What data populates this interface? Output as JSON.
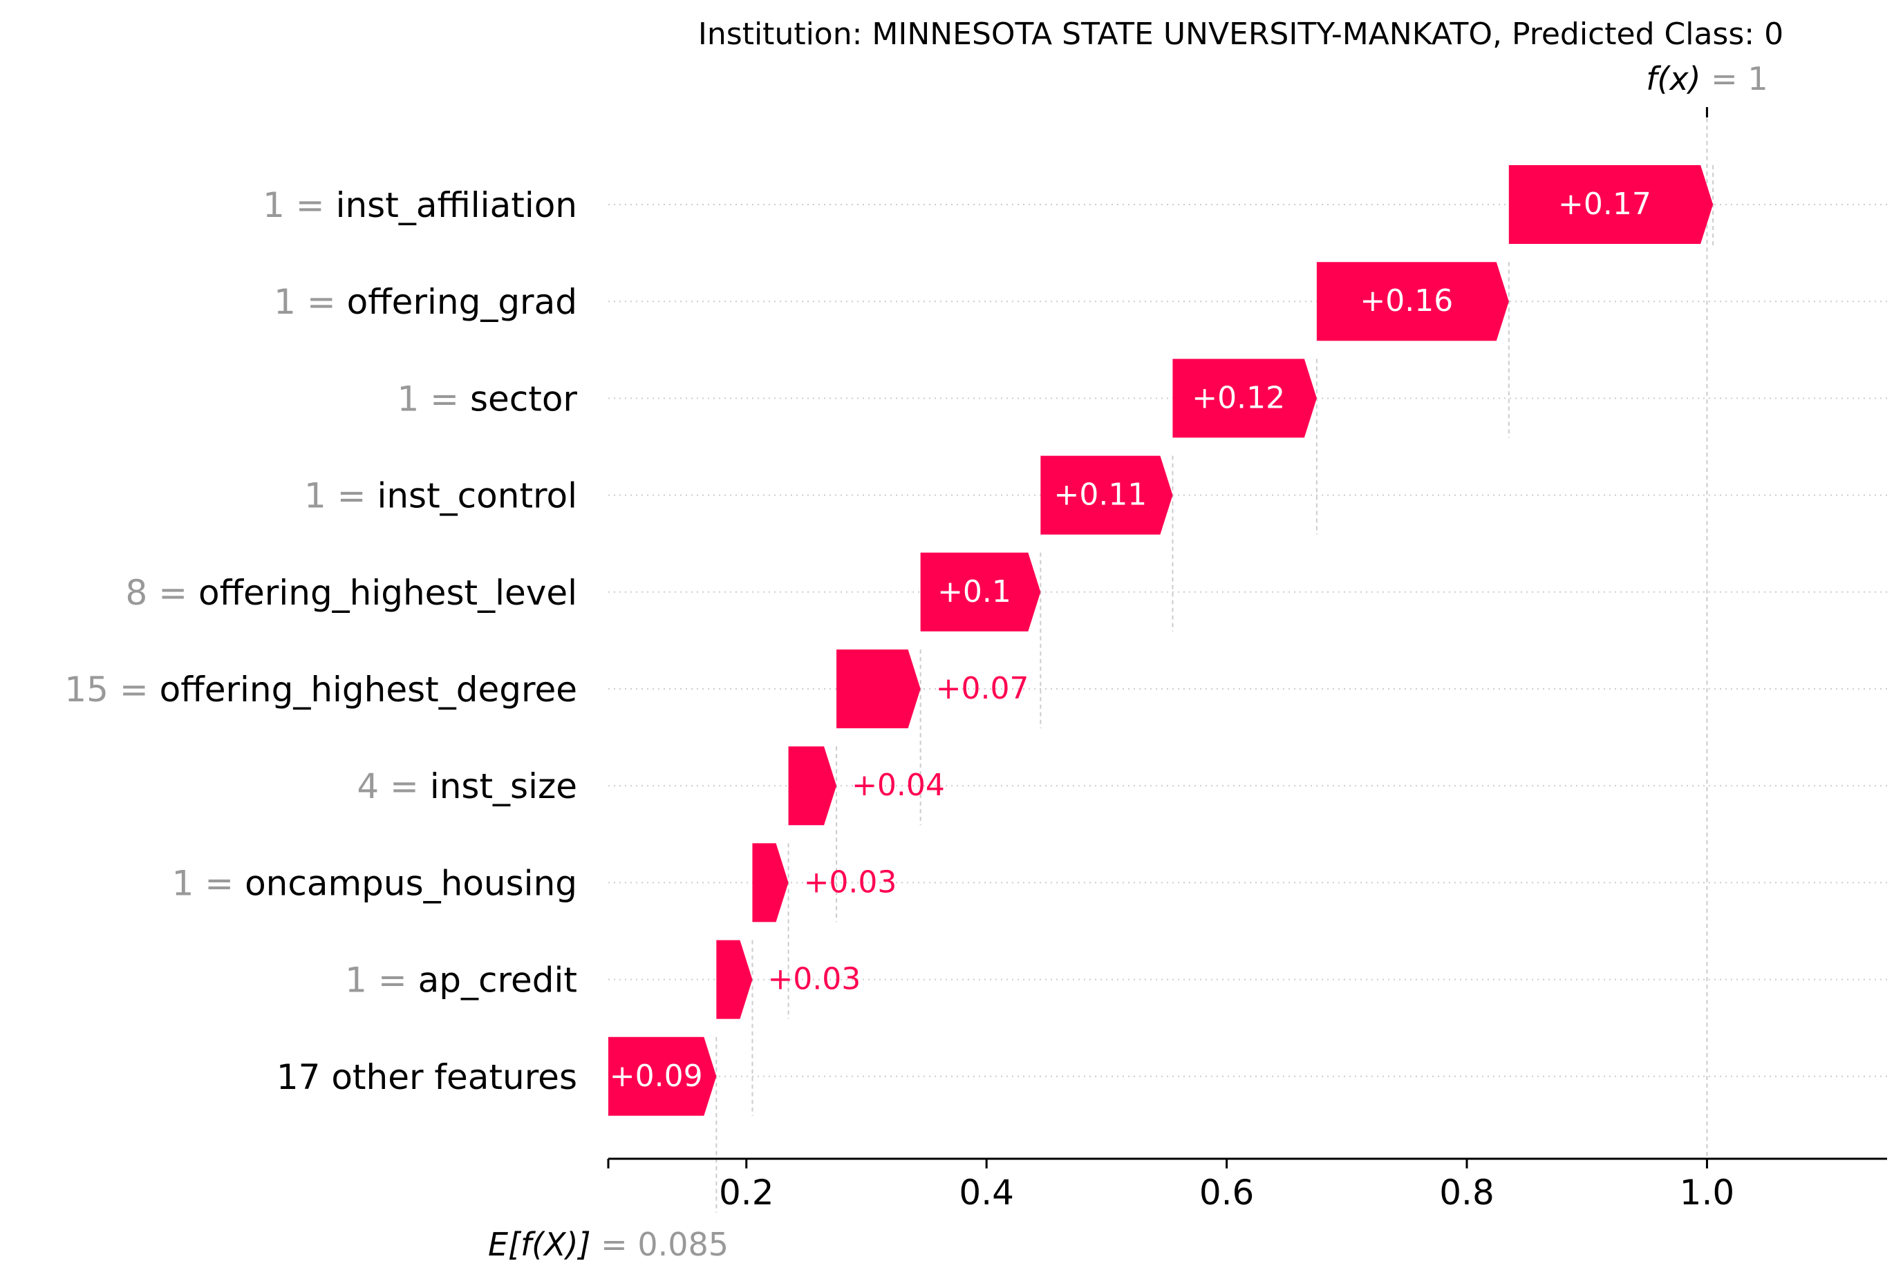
{
  "chart_data": {
    "type": "waterfall",
    "title": "Institution: MINNESOTA STATE UNVERSITY-MANKATO, Predicted Class: 0",
    "fx_label": "f(x)",
    "fx_value_text": "1",
    "fx_value": 1.0,
    "base_label": "E[f(X)]",
    "base_value_text": "0.085",
    "base_value": 0.085,
    "xlim": [
      0.085,
      1.15
    ],
    "xticks": [
      0.2,
      0.4,
      0.6,
      0.8,
      1.0
    ],
    "xtick_labels": [
      "0.2",
      "0.4",
      "0.6",
      "0.8",
      "1.0"
    ],
    "features": [
      {
        "value": "1",
        "name": "inst_affiliation",
        "contribution": 0.17,
        "label": "+0.17"
      },
      {
        "value": "1",
        "name": "offering_grad",
        "contribution": 0.16,
        "label": "+0.16"
      },
      {
        "value": "1",
        "name": "sector",
        "contribution": 0.12,
        "label": "+0.12"
      },
      {
        "value": "1",
        "name": "inst_control",
        "contribution": 0.11,
        "label": "+0.11"
      },
      {
        "value": "8",
        "name": "offering_highest_level",
        "contribution": 0.1,
        "label": "+0.1"
      },
      {
        "value": "15",
        "name": "offering_highest_degree",
        "contribution": 0.07,
        "label": "+0.07"
      },
      {
        "value": "4",
        "name": "inst_size",
        "contribution": 0.04,
        "label": "+0.04"
      },
      {
        "value": "1",
        "name": "oncampus_housing",
        "contribution": 0.03,
        "label": "+0.03"
      },
      {
        "value": "1",
        "name": "ap_credit",
        "contribution": 0.03,
        "label": "+0.03"
      },
      {
        "value": "",
        "name": "17 other features",
        "contribution": 0.09,
        "label": "+0.09"
      }
    ],
    "colors": {
      "positive": "#ff0051",
      "gray_text": "#999999",
      "axis": "#000000",
      "grid": "#cccccc"
    }
  }
}
